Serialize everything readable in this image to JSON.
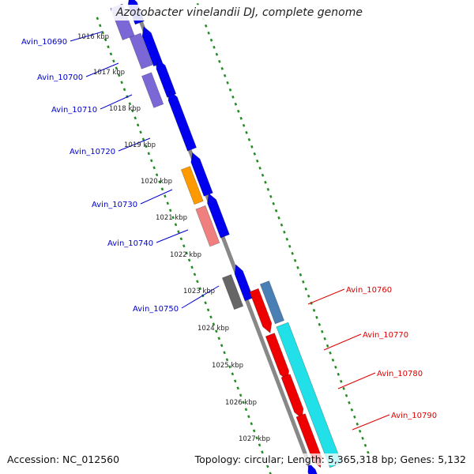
{
  "title": "Azotobacter vinelandii DJ, complete genome",
  "accession": "Accession: NC_012560",
  "topology": "Topology: circular; Length: 5,365,318 bp; Genes: 5,132",
  "colors": {
    "backbone": "#888888",
    "forward_label": "#0000cc",
    "reverse_label": "#dd0000",
    "tick_dots": "#228b22",
    "gene_blue": "#0000ee",
    "gene_purple": "#7b68d6",
    "gene_orange": "#ff9900",
    "gene_pink": "#f08080",
    "gene_gray": "#666666",
    "gene_red": "#ee0000",
    "gene_steelblue": "#4a7fb5",
    "gene_cyan": "#22e0e8"
  },
  "kbp_ticks": [
    "1016 kbp",
    "1017 kbp",
    "1018 kbp",
    "1019 kbp",
    "1020 kbp",
    "1021 kbp",
    "1022 kbp",
    "1023 kbp",
    "1024 kbp",
    "1025 kbp",
    "1026 kbp",
    "1027 kbp"
  ],
  "forward_labels": [
    "Avin_10690",
    "Avin_10700",
    "Avin_10710",
    "Avin_10720",
    "Avin_10730",
    "Avin_10740",
    "Avin_10750"
  ],
  "reverse_labels": [
    "Avin_10760",
    "Avin_10770",
    "Avin_10780",
    "Avin_10790"
  ]
}
